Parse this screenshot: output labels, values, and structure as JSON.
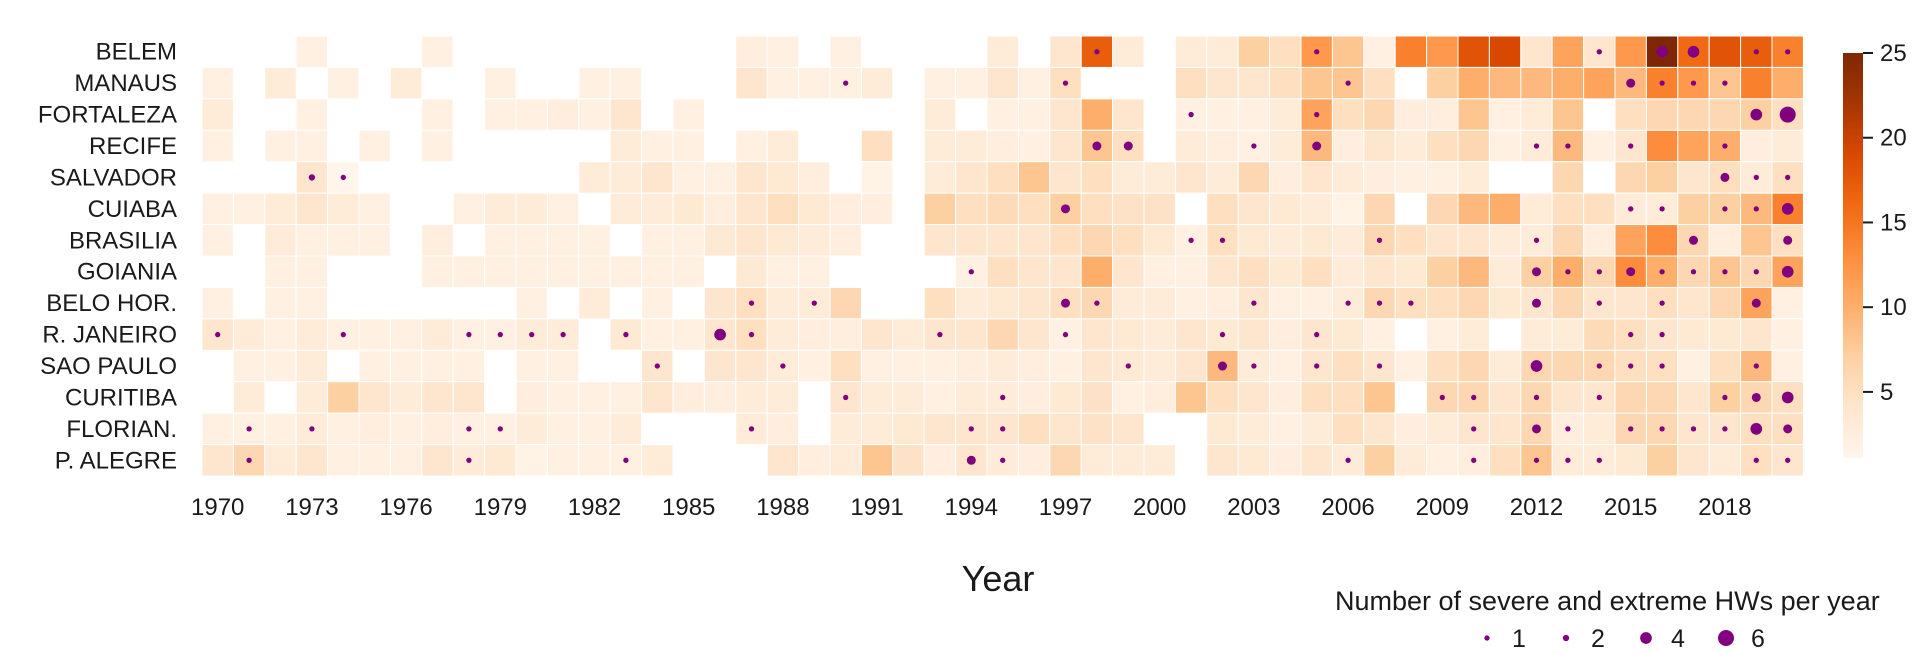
{
  "chart_data": {
    "type": "heatmap",
    "xlabel": "Year",
    "x_range": [
      1970,
      2020
    ],
    "xticks": [
      "1970",
      "1973",
      "1976",
      "1979",
      "1982",
      "1985",
      "1988",
      "1991",
      "1994",
      "1997",
      "2000",
      "2003",
      "2006",
      "2009",
      "2012",
      "2015",
      "2018"
    ],
    "rows": [
      "BELEM",
      "MANAUS",
      "FORTALEZA",
      "RECIFE",
      "SALVADOR",
      "CUIABA",
      "BRASILIA",
      "GOIANIA",
      "BELO HOR.",
      "R. JANEIRO",
      "SAO PAULO",
      "CURITIBA",
      "FLORIAN.",
      "P. ALEGRE"
    ],
    "values": [
      [
        null,
        null,
        null,
        2,
        null,
        null,
        null,
        2,
        null,
        null,
        null,
        null,
        null,
        null,
        null,
        null,
        null,
        2.5,
        2,
        null,
        2,
        null,
        null,
        null,
        null,
        3,
        null,
        4,
        17,
        3,
        null,
        3,
        3,
        7,
        5,
        12,
        8,
        2,
        14,
        12,
        18,
        19,
        4,
        11,
        4,
        12,
        25,
        16,
        18,
        17,
        14
      ],
      [
        2,
        null,
        3,
        null,
        2,
        null,
        3,
        null,
        null,
        2,
        null,
        null,
        2,
        2,
        null,
        null,
        null,
        4,
        2,
        2,
        2,
        3,
        null,
        2,
        2,
        4,
        2,
        5,
        null,
        null,
        null,
        5,
        4,
        4,
        5,
        8,
        8,
        5,
        null,
        7,
        10,
        9,
        9,
        10,
        11,
        9,
        14,
        12,
        8,
        14,
        10
      ],
      [
        3,
        null,
        null,
        2,
        null,
        null,
        null,
        2,
        null,
        2,
        2,
        2.5,
        2,
        4,
        null,
        2,
        null,
        null,
        null,
        null,
        null,
        null,
        null,
        3,
        null,
        2,
        2,
        4,
        10,
        4,
        null,
        2,
        2,
        2,
        3,
        11,
        5,
        6,
        2.5,
        2.5,
        8,
        2,
        3,
        8,
        null,
        5,
        6,
        6,
        6,
        7,
        5
      ],
      [
        2,
        null,
        2,
        2,
        null,
        2,
        null,
        2,
        null,
        null,
        null,
        null,
        null,
        3,
        2,
        2,
        null,
        2,
        3,
        null,
        null,
        5,
        null,
        3,
        3,
        2.5,
        2,
        4,
        8,
        5,
        null,
        3,
        2.5,
        2,
        3,
        9,
        2.5,
        4,
        3,
        5,
        6,
        2,
        3,
        9,
        2,
        4,
        13,
        11,
        10,
        2.5,
        3
      ],
      [
        null,
        null,
        null,
        4,
        1,
        null,
        null,
        null,
        null,
        null,
        null,
        null,
        3,
        3,
        4,
        2,
        2,
        4,
        3.5,
        2.5,
        null,
        1.5,
        null,
        3,
        4,
        5,
        8,
        4,
        5,
        3,
        3,
        4,
        3,
        6,
        2.5,
        4,
        3,
        2.5,
        2,
        2,
        3,
        null,
        null,
        6,
        null,
        6,
        7,
        4,
        5,
        3,
        5
      ],
      [
        2,
        2,
        3,
        4,
        3,
        2,
        null,
        null,
        2,
        3,
        3,
        2,
        null,
        3,
        3,
        3.5,
        2.5,
        4,
        5,
        3.5,
        2.5,
        2.5,
        null,
        7,
        5,
        5.5,
        5,
        7,
        5,
        4.5,
        4.5,
        null,
        5,
        4,
        3.5,
        3,
        1.5,
        6,
        null,
        6,
        9,
        10,
        3,
        5,
        5,
        3,
        3,
        7,
        7,
        9,
        14
      ],
      [
        2,
        null,
        3,
        2,
        2,
        2,
        null,
        2.5,
        null,
        2,
        2,
        2,
        2,
        null,
        2,
        2,
        3.5,
        4,
        3.5,
        3,
        2.5,
        null,
        null,
        4,
        4,
        4,
        4,
        5,
        6,
        5,
        3.5,
        2,
        5,
        3.5,
        3,
        3.5,
        3,
        6,
        5,
        4,
        4,
        3,
        3,
        6,
        2.5,
        11,
        13,
        6,
        2.5,
        8,
        5
      ],
      [
        null,
        null,
        2,
        2,
        null,
        null,
        null,
        2,
        2,
        2,
        2,
        2,
        2,
        2,
        2,
        2,
        null,
        3.5,
        2,
        2,
        null,
        null,
        null,
        null,
        2,
        5,
        4,
        4,
        10,
        4,
        2,
        2,
        4,
        5,
        3.5,
        5,
        3,
        4,
        3.5,
        7,
        9,
        3,
        7,
        10,
        6,
        13,
        10,
        6,
        8,
        6,
        11
      ],
      [
        2,
        null,
        2,
        2,
        null,
        null,
        null,
        null,
        null,
        null,
        2,
        null,
        3,
        null,
        2,
        null,
        4,
        5,
        3,
        3,
        6,
        null,
        null,
        5,
        3,
        3.5,
        4,
        5,
        6,
        3,
        3,
        2,
        2.5,
        4,
        2,
        2,
        3,
        6,
        5,
        5,
        6,
        3.5,
        4,
        6,
        4,
        4,
        5,
        4,
        6,
        11,
        2
      ],
      [
        4,
        3,
        2,
        3,
        2,
        2,
        2,
        3,
        2,
        2,
        3,
        3,
        null,
        3.5,
        2,
        2,
        4,
        5,
        3,
        2.5,
        2.5,
        4,
        3,
        4,
        4,
        6,
        4,
        2,
        4,
        3.5,
        3,
        4,
        3.5,
        4,
        2.5,
        4,
        3.5,
        2,
        null,
        2,
        3,
        null,
        3,
        3,
        5.5,
        5,
        4,
        3.5,
        3.5,
        4,
        2
      ],
      [
        null,
        2,
        2,
        3,
        null,
        2,
        2,
        2,
        2,
        null,
        2,
        2,
        null,
        null,
        4,
        null,
        4,
        4,
        3,
        2,
        5,
        2,
        2,
        2,
        2.5,
        3,
        2.5,
        2,
        4,
        3.5,
        3,
        4,
        9,
        3,
        2,
        4,
        5,
        4,
        2,
        5,
        6,
        3,
        6,
        6,
        6,
        5,
        5,
        2,
        5,
        9,
        2
      ],
      [
        null,
        3,
        null,
        3,
        7,
        4,
        3,
        4,
        4,
        null,
        2.5,
        2,
        2,
        2,
        4,
        2.5,
        2.5,
        3,
        3,
        null,
        4,
        3,
        3,
        2,
        3,
        3,
        2.5,
        3.5,
        4.5,
        2,
        2.5,
        8,
        5,
        4,
        2.5,
        5,
        5,
        8,
        null,
        6,
        6,
        4,
        6,
        4,
        4,
        6,
        6,
        4,
        7,
        6,
        5
      ],
      [
        2,
        2,
        2,
        3,
        2,
        2.5,
        2,
        2.5,
        2,
        2,
        3,
        2,
        2,
        3,
        null,
        null,
        null,
        3,
        2.5,
        null,
        3,
        3,
        3.5,
        4,
        4,
        4,
        5,
        4,
        4.5,
        4,
        null,
        null,
        3.5,
        3,
        2,
        3,
        5,
        4,
        2.5,
        3,
        4,
        4,
        6,
        2.5,
        3,
        6,
        6,
        4,
        4,
        5,
        5
      ],
      [
        4,
        6,
        3,
        4,
        2,
        2,
        2,
        4,
        3,
        3.5,
        1.5,
        2,
        2,
        2,
        3,
        null,
        null,
        null,
        4,
        2.5,
        3,
        8,
        4.5,
        2.5,
        4,
        3,
        2.5,
        6,
        3,
        3,
        3,
        null,
        4,
        3.5,
        2.5,
        4,
        3,
        7,
        3,
        2,
        2.5,
        5,
        8,
        3,
        3,
        3.5,
        7,
        4,
        3,
        5,
        4
      ]
    ],
    "hw_counts": [
      [
        [
          1998,
          1
        ],
        [
          2005,
          1
        ],
        [
          2014,
          1
        ],
        [
          2016,
          4
        ],
        [
          2017,
          4
        ],
        [
          2019,
          1
        ],
        [
          2020,
          1
        ]
      ],
      [
        [
          1990,
          1
        ],
        [
          1997,
          1
        ],
        [
          2006,
          1
        ],
        [
          2015,
          3
        ],
        [
          2016,
          1
        ],
        [
          2017,
          1
        ],
        [
          2018,
          1
        ]
      ],
      [
        [
          2001,
          1
        ],
        [
          2005,
          1
        ],
        [
          2019,
          4
        ],
        [
          2020,
          6
        ]
      ],
      [
        [
          1998,
          3
        ],
        [
          1999,
          3
        ],
        [
          2003,
          1
        ],
        [
          2005,
          3
        ],
        [
          2012,
          1
        ],
        [
          2013,
          1
        ],
        [
          2015,
          1
        ],
        [
          2018,
          1
        ]
      ],
      [
        [
          1973,
          2
        ],
        [
          1974,
          1
        ],
        [
          2018,
          3
        ],
        [
          2019,
          1
        ],
        [
          2020,
          1
        ]
      ],
      [
        [
          1997,
          3
        ],
        [
          2015,
          1
        ],
        [
          2016,
          1
        ],
        [
          2018,
          1
        ],
        [
          2019,
          1
        ],
        [
          2020,
          4
        ]
      ],
      [
        [
          2001,
          1
        ],
        [
          2002,
          1
        ],
        [
          2007,
          1
        ],
        [
          2012,
          1
        ],
        [
          2017,
          3
        ],
        [
          2020,
          3
        ]
      ],
      [
        [
          1994,
          1
        ],
        [
          2012,
          3
        ],
        [
          2013,
          1
        ],
        [
          2014,
          1
        ],
        [
          2015,
          3
        ],
        [
          2016,
          1
        ],
        [
          2017,
          1
        ],
        [
          2018,
          1
        ],
        [
          2019,
          1
        ],
        [
          2020,
          4
        ]
      ],
      [
        [
          1987,
          1
        ],
        [
          1989,
          1
        ],
        [
          1997,
          3
        ],
        [
          1998,
          1
        ],
        [
          2003,
          1
        ],
        [
          2006,
          1
        ],
        [
          2007,
          1
        ],
        [
          2008,
          1
        ],
        [
          2012,
          3
        ],
        [
          2014,
          1
        ],
        [
          2016,
          1
        ],
        [
          2019,
          3
        ]
      ],
      [
        [
          1970,
          1
        ],
        [
          1974,
          1
        ],
        [
          1978,
          1
        ],
        [
          1979,
          1
        ],
        [
          1980,
          1
        ],
        [
          1981,
          1
        ],
        [
          1983,
          1
        ],
        [
          1986,
          4
        ],
        [
          1987,
          1
        ],
        [
          1993,
          1
        ],
        [
          1997,
          1
        ],
        [
          2002,
          1
        ],
        [
          2005,
          1
        ],
        [
          2015,
          1
        ],
        [
          2016,
          1
        ]
      ],
      [
        [
          1984,
          1
        ],
        [
          1988,
          1
        ],
        [
          1999,
          1
        ],
        [
          2002,
          3
        ],
        [
          2003,
          1
        ],
        [
          2005,
          1
        ],
        [
          2007,
          1
        ],
        [
          2012,
          4
        ],
        [
          2014,
          1
        ],
        [
          2015,
          1
        ],
        [
          2016,
          1
        ],
        [
          2019,
          1
        ]
      ],
      [
        [
          1990,
          1
        ],
        [
          1995,
          1
        ],
        [
          2009,
          1
        ],
        [
          2010,
          1
        ],
        [
          2012,
          1
        ],
        [
          2014,
          1
        ],
        [
          2018,
          1
        ],
        [
          2019,
          3
        ],
        [
          2020,
          4
        ]
      ],
      [
        [
          1971,
          1
        ],
        [
          1973,
          1
        ],
        [
          1978,
          1
        ],
        [
          1979,
          1
        ],
        [
          1987,
          1
        ],
        [
          1994,
          1
        ],
        [
          1995,
          1
        ],
        [
          2010,
          1
        ],
        [
          2012,
          3
        ],
        [
          2013,
          1
        ],
        [
          2015,
          1
        ],
        [
          2016,
          1
        ],
        [
          2017,
          1
        ],
        [
          2018,
          1
        ],
        [
          2019,
          4
        ],
        [
          2020,
          3
        ]
      ],
      [
        [
          1971,
          1
        ],
        [
          1978,
          1
        ],
        [
          1983,
          1
        ],
        [
          1994,
          3
        ],
        [
          1995,
          1
        ],
        [
          2006,
          1
        ],
        [
          2010,
          1
        ],
        [
          2012,
          1
        ],
        [
          2013,
          1
        ],
        [
          2014,
          1
        ],
        [
          2019,
          1
        ],
        [
          2020,
          1
        ]
      ]
    ],
    "colorbar": {
      "cmap": "Oranges",
      "min": 1,
      "max": 25,
      "ticks": [
        "5",
        "10",
        "15",
        "20",
        "25"
      ]
    },
    "size_legend": {
      "title": "Number of severe and extreme HWs per year",
      "values": [
        "1",
        "2",
        "4",
        "6"
      ]
    },
    "colors": {
      "dot": "#800080",
      "cell_border": "#ffffff"
    },
    "grid": false
  }
}
